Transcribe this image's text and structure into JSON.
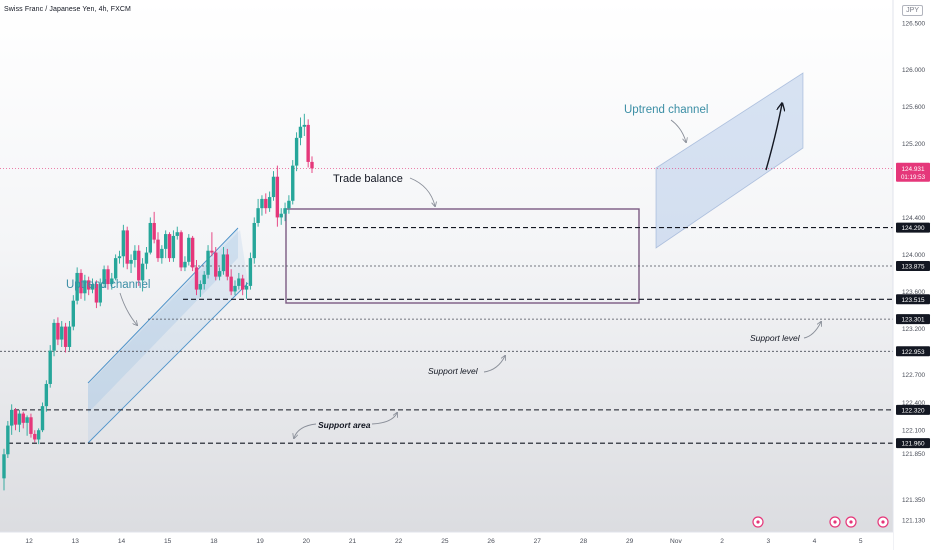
{
  "header": {
    "title": "Swiss Franc / Japanese Yen, 4h, FXCM",
    "currency": "JPY"
  },
  "chart_data": {
    "type": "candlestick",
    "ylim": [
      121.0,
      126.75
    ],
    "ytick_labels": [
      "126.500",
      "126.000",
      "125.600",
      "125.200",
      "124.400",
      "124.000",
      "123.600",
      "123.200",
      "122.700",
      "122.400",
      "122.100",
      "121.850",
      "121.350",
      "121.130"
    ],
    "ytick_values": [
      126.5,
      126.0,
      125.6,
      125.2,
      124.4,
      124.0,
      123.6,
      123.2,
      122.7,
      122.4,
      122.1,
      121.85,
      121.35,
      121.13
    ],
    "xtick_labels": [
      "12",
      "13",
      "14",
      "15",
      "18",
      "19",
      "20",
      "21",
      "22",
      "25",
      "26",
      "27",
      "28",
      "29",
      "Nov",
      "2",
      "3",
      "4",
      "5"
    ],
    "xtick_index": [
      6,
      18,
      30,
      42,
      54,
      66,
      78,
      90,
      102,
      114,
      126,
      138,
      150,
      162,
      174,
      186,
      198,
      210,
      222
    ],
    "last_price": {
      "label": "124.931",
      "value": 124.931,
      "countdown": "01:19:53"
    },
    "price_levels": [
      {
        "label": "124.290",
        "value": 124.29
      },
      {
        "label": "123.875",
        "value": 123.875
      },
      {
        "label": "123.515",
        "value": 123.515
      },
      {
        "label": "123.301",
        "value": 123.301
      },
      {
        "label": "122.953",
        "value": 122.953
      },
      {
        "label": "122.320",
        "value": 122.32
      },
      {
        "label": "121.960",
        "value": 121.96
      }
    ],
    "candles": [
      {
        "o": 121.58,
        "h": 121.9,
        "l": 121.45,
        "c": 121.84
      },
      {
        "o": 121.84,
        "h": 122.2,
        "l": 121.8,
        "c": 122.15
      },
      {
        "o": 122.15,
        "h": 122.38,
        "l": 122.05,
        "c": 122.32
      },
      {
        "o": 122.32,
        "h": 122.34,
        "l": 122.1,
        "c": 122.16
      },
      {
        "o": 122.16,
        "h": 122.32,
        "l": 122.08,
        "c": 122.28
      },
      {
        "o": 122.28,
        "h": 122.3,
        "l": 122.12,
        "c": 122.18
      },
      {
        "o": 122.18,
        "h": 122.26,
        "l": 122.04,
        "c": 122.24
      },
      {
        "o": 122.24,
        "h": 122.28,
        "l": 122.02,
        "c": 122.06
      },
      {
        "o": 122.06,
        "h": 122.1,
        "l": 121.97,
        "c": 122.0
      },
      {
        "o": 122.0,
        "h": 122.12,
        "l": 121.95,
        "c": 122.1
      },
      {
        "o": 122.1,
        "h": 122.4,
        "l": 122.08,
        "c": 122.36
      },
      {
        "o": 122.36,
        "h": 122.64,
        "l": 122.3,
        "c": 122.6
      },
      {
        "o": 122.6,
        "h": 123.02,
        "l": 122.56,
        "c": 122.96
      },
      {
        "o": 122.96,
        "h": 123.3,
        "l": 122.9,
        "c": 123.26
      },
      {
        "o": 123.26,
        "h": 123.32,
        "l": 123.02,
        "c": 123.08
      },
      {
        "o": 123.08,
        "h": 123.28,
        "l": 123.0,
        "c": 123.22
      },
      {
        "o": 123.22,
        "h": 123.26,
        "l": 122.94,
        "c": 123.0
      },
      {
        "o": 123.0,
        "h": 123.28,
        "l": 122.96,
        "c": 123.22
      },
      {
        "o": 123.22,
        "h": 123.56,
        "l": 123.18,
        "c": 123.5
      },
      {
        "o": 123.5,
        "h": 123.86,
        "l": 123.46,
        "c": 123.8
      },
      {
        "o": 123.8,
        "h": 123.84,
        "l": 123.52,
        "c": 123.58
      },
      {
        "o": 123.58,
        "h": 123.78,
        "l": 123.5,
        "c": 123.72
      },
      {
        "o": 123.72,
        "h": 123.76,
        "l": 123.56,
        "c": 123.62
      },
      {
        "o": 123.62,
        "h": 123.74,
        "l": 123.58,
        "c": 123.68
      },
      {
        "o": 123.68,
        "h": 123.72,
        "l": 123.42,
        "c": 123.48
      },
      {
        "o": 123.48,
        "h": 123.74,
        "l": 123.44,
        "c": 123.68
      },
      {
        "o": 123.68,
        "h": 123.88,
        "l": 123.64,
        "c": 123.84
      },
      {
        "o": 123.84,
        "h": 123.88,
        "l": 123.62,
        "c": 123.68
      },
      {
        "o": 123.68,
        "h": 123.8,
        "l": 123.62,
        "c": 123.74
      },
      {
        "o": 123.74,
        "h": 124.0,
        "l": 123.72,
        "c": 123.96
      },
      {
        "o": 123.96,
        "h": 124.04,
        "l": 123.9,
        "c": 123.98
      },
      {
        "o": 123.98,
        "h": 124.32,
        "l": 123.86,
        "c": 124.26
      },
      {
        "o": 124.26,
        "h": 124.3,
        "l": 123.84,
        "c": 123.9
      },
      {
        "o": 123.9,
        "h": 124.0,
        "l": 123.8,
        "c": 123.94
      },
      {
        "o": 123.94,
        "h": 124.1,
        "l": 123.86,
        "c": 124.04
      },
      {
        "o": 124.04,
        "h": 124.1,
        "l": 123.66,
        "c": 123.72
      },
      {
        "o": 123.72,
        "h": 123.96,
        "l": 123.6,
        "c": 123.9
      },
      {
        "o": 123.9,
        "h": 124.08,
        "l": 123.84,
        "c": 124.02
      },
      {
        "o": 124.02,
        "h": 124.4,
        "l": 124.0,
        "c": 124.34
      },
      {
        "o": 124.34,
        "h": 124.46,
        "l": 124.12,
        "c": 124.16
      },
      {
        "o": 124.16,
        "h": 124.24,
        "l": 123.92,
        "c": 123.96
      },
      {
        "o": 123.96,
        "h": 124.1,
        "l": 123.9,
        "c": 124.06
      },
      {
        "o": 124.06,
        "h": 124.26,
        "l": 123.96,
        "c": 124.22
      },
      {
        "o": 124.22,
        "h": 124.24,
        "l": 123.92,
        "c": 123.96
      },
      {
        "o": 123.96,
        "h": 124.26,
        "l": 123.92,
        "c": 124.2
      },
      {
        "o": 124.2,
        "h": 124.3,
        "l": 124.16,
        "c": 124.24
      },
      {
        "o": 124.24,
        "h": 124.26,
        "l": 123.82,
        "c": 123.86
      },
      {
        "o": 123.86,
        "h": 123.98,
        "l": 123.82,
        "c": 123.92
      },
      {
        "o": 123.92,
        "h": 124.22,
        "l": 123.88,
        "c": 124.18
      },
      {
        "o": 124.18,
        "h": 124.2,
        "l": 123.82,
        "c": 123.86
      },
      {
        "o": 123.86,
        "h": 123.94,
        "l": 123.56,
        "c": 123.62
      },
      {
        "o": 123.62,
        "h": 123.72,
        "l": 123.54,
        "c": 123.68
      },
      {
        "o": 123.68,
        "h": 123.82,
        "l": 123.62,
        "c": 123.78
      },
      {
        "o": 123.78,
        "h": 124.1,
        "l": 123.74,
        "c": 124.04
      },
      {
        "o": 124.04,
        "h": 124.24,
        "l": 123.98,
        "c": 124.02
      },
      {
        "o": 124.02,
        "h": 124.08,
        "l": 123.72,
        "c": 123.76
      },
      {
        "o": 123.76,
        "h": 123.86,
        "l": 123.72,
        "c": 123.82
      },
      {
        "o": 123.82,
        "h": 124.08,
        "l": 123.78,
        "c": 124.0
      },
      {
        "o": 124.0,
        "h": 124.06,
        "l": 123.72,
        "c": 123.76
      },
      {
        "o": 123.76,
        "h": 123.84,
        "l": 123.56,
        "c": 123.6
      },
      {
        "o": 123.6,
        "h": 123.72,
        "l": 123.56,
        "c": 123.66
      },
      {
        "o": 123.66,
        "h": 123.8,
        "l": 123.62,
        "c": 123.74
      },
      {
        "o": 123.74,
        "h": 123.78,
        "l": 123.56,
        "c": 123.62
      },
      {
        "o": 123.62,
        "h": 123.7,
        "l": 123.52,
        "c": 123.66
      },
      {
        "o": 123.66,
        "h": 124.02,
        "l": 123.62,
        "c": 123.96
      },
      {
        "o": 123.96,
        "h": 124.4,
        "l": 123.9,
        "c": 124.34
      },
      {
        "o": 124.34,
        "h": 124.6,
        "l": 124.3,
        "c": 124.5
      },
      {
        "o": 124.5,
        "h": 124.64,
        "l": 124.42,
        "c": 124.6
      },
      {
        "o": 124.6,
        "h": 124.66,
        "l": 124.44,
        "c": 124.5
      },
      {
        "o": 124.5,
        "h": 124.68,
        "l": 124.46,
        "c": 124.62
      },
      {
        "o": 124.62,
        "h": 124.9,
        "l": 124.58,
        "c": 124.84
      },
      {
        "o": 124.84,
        "h": 124.96,
        "l": 124.3,
        "c": 124.4
      },
      {
        "o": 124.4,
        "h": 124.5,
        "l": 124.32,
        "c": 124.44
      },
      {
        "o": 124.44,
        "h": 124.56,
        "l": 124.36,
        "c": 124.5
      },
      {
        "o": 124.5,
        "h": 124.64,
        "l": 124.44,
        "c": 124.58
      },
      {
        "o": 124.58,
        "h": 125.02,
        "l": 124.54,
        "c": 124.96
      },
      {
        "o": 124.96,
        "h": 125.32,
        "l": 124.9,
        "c": 125.26
      },
      {
        "o": 125.26,
        "h": 125.48,
        "l": 125.18,
        "c": 125.38
      },
      {
        "o": 125.38,
        "h": 125.52,
        "l": 125.28,
        "c": 125.4
      },
      {
        "o": 125.4,
        "h": 125.46,
        "l": 124.94,
        "c": 125.0
      },
      {
        "o": 125.0,
        "h": 125.06,
        "l": 124.88,
        "c": 124.93
      }
    ],
    "annotations": [
      {
        "text": "Uptrend channel"
      },
      {
        "text": "Trade balance"
      },
      {
        "text": "Uptrend channel"
      },
      {
        "text": "Support level"
      },
      {
        "text": "Support level"
      },
      {
        "text": "Support area"
      }
    ],
    "colors": {
      "up": "#26a69a",
      "down": "#e5377a",
      "channel": "#4a90c8",
      "box": "#7b5a82",
      "last_price": "#e5377a",
      "level": "#131722"
    }
  }
}
